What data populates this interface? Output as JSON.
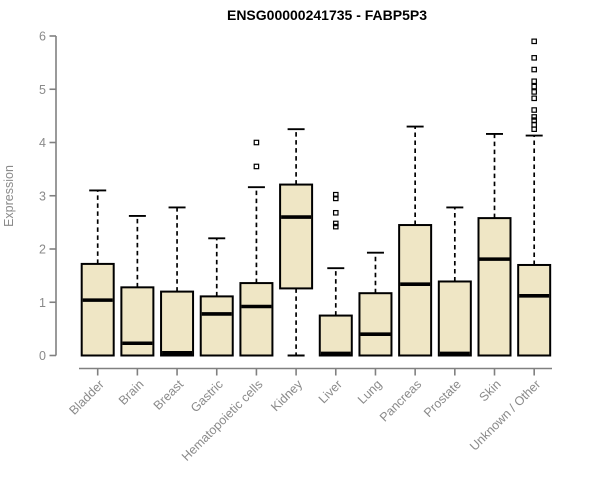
{
  "title": "ENSG00000241735 - FABP5P3",
  "chart_data": {
    "type": "boxplot",
    "title": "ENSG00000241735 - FABP5P3",
    "xlabel": "",
    "ylabel": "Expression",
    "ylim": [
      0,
      6
    ],
    "yticks": [
      0,
      1,
      2,
      3,
      4,
      5,
      6
    ],
    "grid": false,
    "legend": "none",
    "categories": [
      "Bladder",
      "Brain",
      "Breast",
      "Gastric",
      "Hematopoietic cells",
      "Kidney",
      "Liver",
      "Lung",
      "Pancreas",
      "Prostate",
      "Skin",
      "Unknown / Other"
    ],
    "boxes": [
      {
        "category": "Bladder",
        "whisker_low": 0,
        "q1": 0,
        "median": 1.04,
        "q3": 1.72,
        "whisker_high": 3.1,
        "outliers": []
      },
      {
        "category": "Brain",
        "whisker_low": 0,
        "q1": 0,
        "median": 0.23,
        "q3": 1.28,
        "whisker_high": 2.62,
        "outliers": []
      },
      {
        "category": "Breast",
        "whisker_low": 0,
        "q1": 0,
        "median": 0.05,
        "q3": 1.2,
        "whisker_high": 2.78,
        "outliers": []
      },
      {
        "category": "Gastric",
        "whisker_low": 0,
        "q1": 0,
        "median": 0.78,
        "q3": 1.11,
        "whisker_high": 2.2,
        "outliers": []
      },
      {
        "category": "Hematopoietic cells",
        "whisker_low": 0,
        "q1": 0,
        "median": 0.92,
        "q3": 1.36,
        "whisker_high": 3.16,
        "outliers": [
          3.55,
          4.0
        ]
      },
      {
        "category": "Kidney",
        "whisker_low": 0,
        "q1": 1.26,
        "median": 2.6,
        "q3": 3.21,
        "whisker_high": 4.25,
        "outliers": []
      },
      {
        "category": "Liver",
        "whisker_low": 0,
        "q1": 0,
        "median": 0.04,
        "q3": 0.75,
        "whisker_high": 1.64,
        "outliers": [
          2.42,
          2.48,
          2.68,
          2.95,
          3.02
        ]
      },
      {
        "category": "Lung",
        "whisker_low": 0,
        "q1": 0,
        "median": 0.4,
        "q3": 1.17,
        "whisker_high": 1.93,
        "outliers": []
      },
      {
        "category": "Pancreas",
        "whisker_low": 0,
        "q1": 0,
        "median": 1.34,
        "q3": 2.45,
        "whisker_high": 4.3,
        "outliers": []
      },
      {
        "category": "Prostate",
        "whisker_low": 0,
        "q1": 0,
        "median": 0.04,
        "q3": 1.39,
        "whisker_high": 2.78,
        "outliers": []
      },
      {
        "category": "Skin",
        "whisker_low": 0,
        "q1": 0,
        "median": 1.81,
        "q3": 2.58,
        "whisker_high": 4.16,
        "outliers": []
      },
      {
        "category": "Unknown / Other",
        "whisker_low": 0,
        "q1": 0,
        "median": 1.12,
        "q3": 1.7,
        "whisker_high": 4.13,
        "outliers": [
          4.25,
          4.33,
          4.42,
          4.48,
          4.61,
          4.83,
          4.95,
          5.05,
          5.15,
          5.37,
          5.59,
          5.9
        ]
      }
    ],
    "colors": {
      "box_fill": "#EFE6C5",
      "box_border": "#000000",
      "median": "#000000",
      "whisker": "#000000",
      "axis": "#808080",
      "tick_label": "#8a8a8a",
      "title": "#000000",
      "background": "#ffffff"
    }
  }
}
